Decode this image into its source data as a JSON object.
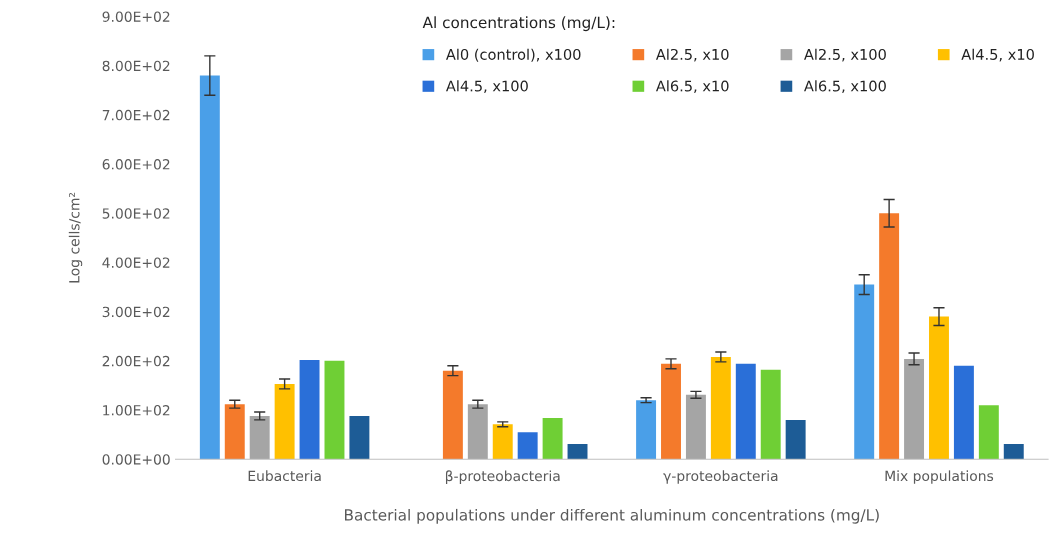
{
  "chart_data": {
    "type": "bar",
    "xlabel": "Bacterial populations under different aluminum concentrations (mg/L)",
    "ylabel": "Log cells/cm²",
    "legend_title": "Al concentrations (mg/L):",
    "categories": [
      "Eubacteria",
      "β-proteobacteria",
      "γ-proteobacteria",
      "Mix populations"
    ],
    "series": [
      {
        "name": "Al0 (control), x100",
        "color": "#4a9fe8",
        "values": [
          780,
          null,
          120,
          355
        ],
        "errors": [
          40,
          null,
          5,
          20
        ]
      },
      {
        "name": "Al2.5, x10",
        "color": "#f47a2b",
        "values": [
          112,
          180,
          194,
          500
        ],
        "errors": [
          8,
          10,
          10,
          28
        ]
      },
      {
        "name": "Al2.5, x100",
        "color": "#a5a5a5",
        "values": [
          88,
          112,
          131,
          204
        ],
        "errors": [
          8,
          8,
          7,
          12
        ]
      },
      {
        "name": "Al4.5, x10",
        "color": "#ffc000",
        "values": [
          153,
          71,
          208,
          290
        ],
        "errors": [
          10,
          5,
          10,
          18
        ]
      },
      {
        "name": "Al4.5, x100",
        "color": "#2a6fd8",
        "values": [
          202,
          55,
          194,
          190
        ]
      },
      {
        "name": "Al6.5, x10",
        "color": "#6fcf35",
        "values": [
          200,
          84,
          182,
          110
        ]
      },
      {
        "name": "Al6.5, x100",
        "color": "#1d5c96",
        "values": [
          88,
          31,
          80,
          31
        ]
      }
    ],
    "ylim": [
      0,
      900
    ],
    "yticks": [
      {
        "value": 0,
        "label": "0.00E+00"
      },
      {
        "value": 100,
        "label": "1.00E+02"
      },
      {
        "value": 200,
        "label": "2.00E+02"
      },
      {
        "value": 300,
        "label": "3.00E+02"
      },
      {
        "value": 400,
        "label": "4.00E+02"
      },
      {
        "value": 500,
        "label": "5.00E+02"
      },
      {
        "value": 600,
        "label": "6.00E+02"
      },
      {
        "value": 700,
        "label": "7.00E+02"
      },
      {
        "value": 800,
        "label": "8.00E+02"
      },
      {
        "value": 900,
        "label": "9.00E+02"
      }
    ],
    "grid": false,
    "legend": "top right"
  }
}
